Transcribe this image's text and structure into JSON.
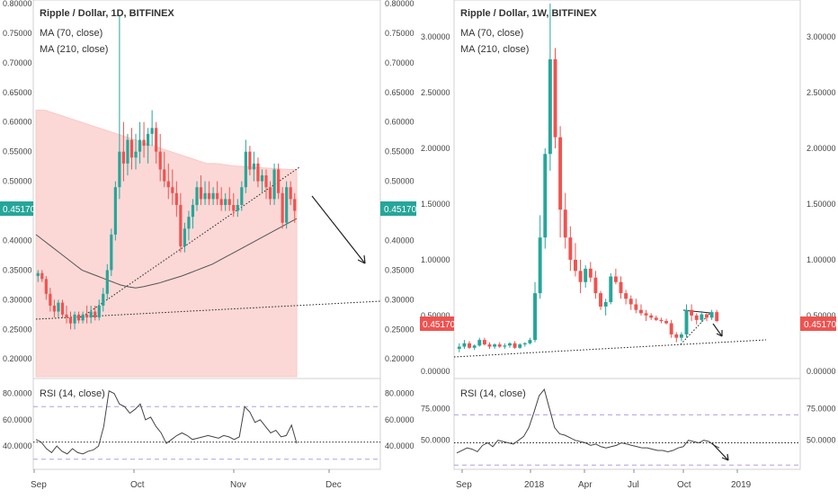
{
  "colors": {
    "up": "#26a69a",
    "down": "#ef5350",
    "ma_fill": "#f7b8b4",
    "ma70": "#f8c9c3",
    "ma210": "#555555",
    "rsi": "#444444",
    "price_badge_left": "#26a69a",
    "price_badge_right": "#ef5350",
    "grid_dash": "#b39ddb",
    "text": "#333333",
    "axis_text": "#444444"
  },
  "chart_data": [
    {
      "type": "candlestick",
      "title": "Ripple / Dollar, 1D, BITFINEX",
      "indicators": [
        "MA (70, close)",
        "MA (210, close)"
      ],
      "y_ticks": [
        "0.80000",
        "0.75000",
        "0.70000",
        "0.65000",
        "0.60000",
        "0.55000",
        "0.50000",
        "0.45000",
        "0.40000",
        "0.35000",
        "0.30000",
        "0.25000",
        "0.20000"
      ],
      "ylim": [
        0.17,
        0.8
      ],
      "x_labels": [
        "Sep",
        "Oct",
        "Nov",
        "Dec"
      ],
      "last_price": "0.45170",
      "ohlc": [
        [
          0.34,
          0.35,
          0.33,
          0.345
        ],
        [
          0.345,
          0.35,
          0.33,
          0.335
        ],
        [
          0.335,
          0.34,
          0.3,
          0.31
        ],
        [
          0.31,
          0.32,
          0.28,
          0.29
        ],
        [
          0.29,
          0.3,
          0.27,
          0.28
        ],
        [
          0.28,
          0.3,
          0.27,
          0.295
        ],
        [
          0.295,
          0.3,
          0.27,
          0.275
        ],
        [
          0.275,
          0.29,
          0.26,
          0.27
        ],
        [
          0.27,
          0.28,
          0.25,
          0.26
        ],
        [
          0.26,
          0.28,
          0.25,
          0.275
        ],
        [
          0.275,
          0.28,
          0.26,
          0.265
        ],
        [
          0.265,
          0.28,
          0.26,
          0.275
        ],
        [
          0.275,
          0.29,
          0.26,
          0.27
        ],
        [
          0.27,
          0.29,
          0.26,
          0.28
        ],
        [
          0.28,
          0.29,
          0.265,
          0.27
        ],
        [
          0.27,
          0.3,
          0.265,
          0.29
        ],
        [
          0.29,
          0.32,
          0.28,
          0.31
        ],
        [
          0.31,
          0.36,
          0.3,
          0.35
        ],
        [
          0.35,
          0.42,
          0.34,
          0.41
        ],
        [
          0.41,
          0.5,
          0.4,
          0.49
        ],
        [
          0.49,
          0.78,
          0.47,
          0.55
        ],
        [
          0.55,
          0.6,
          0.5,
          0.53
        ],
        [
          0.53,
          0.58,
          0.51,
          0.57
        ],
        [
          0.57,
          0.59,
          0.52,
          0.54
        ],
        [
          0.54,
          0.58,
          0.52,
          0.55
        ],
        [
          0.55,
          0.6,
          0.53,
          0.57
        ],
        [
          0.57,
          0.6,
          0.54,
          0.56
        ],
        [
          0.56,
          0.59,
          0.53,
          0.58
        ],
        [
          0.58,
          0.62,
          0.56,
          0.59
        ],
        [
          0.59,
          0.6,
          0.53,
          0.55
        ],
        [
          0.55,
          0.58,
          0.5,
          0.52
        ],
        [
          0.52,
          0.55,
          0.49,
          0.5
        ],
        [
          0.5,
          0.53,
          0.47,
          0.49
        ],
        [
          0.49,
          0.52,
          0.46,
          0.48
        ],
        [
          0.48,
          0.5,
          0.44,
          0.46
        ],
        [
          0.46,
          0.48,
          0.38,
          0.39
        ],
        [
          0.39,
          0.43,
          0.38,
          0.42
        ],
        [
          0.42,
          0.45,
          0.4,
          0.44
        ],
        [
          0.44,
          0.47,
          0.42,
          0.46
        ],
        [
          0.46,
          0.5,
          0.45,
          0.49
        ],
        [
          0.49,
          0.51,
          0.46,
          0.47
        ],
        [
          0.47,
          0.5,
          0.46,
          0.48
        ],
        [
          0.48,
          0.5,
          0.46,
          0.47
        ],
        [
          0.47,
          0.49,
          0.46,
          0.48
        ],
        [
          0.48,
          0.5,
          0.46,
          0.47
        ],
        [
          0.47,
          0.49,
          0.45,
          0.46
        ],
        [
          0.46,
          0.48,
          0.45,
          0.47
        ],
        [
          0.47,
          0.49,
          0.45,
          0.46
        ],
        [
          0.46,
          0.48,
          0.44,
          0.45
        ],
        [
          0.45,
          0.47,
          0.44,
          0.46
        ],
        [
          0.46,
          0.5,
          0.45,
          0.49
        ],
        [
          0.49,
          0.57,
          0.48,
          0.55
        ],
        [
          0.55,
          0.56,
          0.51,
          0.52
        ],
        [
          0.52,
          0.55,
          0.5,
          0.53
        ],
        [
          0.53,
          0.54,
          0.49,
          0.5
        ],
        [
          0.5,
          0.52,
          0.48,
          0.51
        ],
        [
          0.51,
          0.52,
          0.47,
          0.49
        ],
        [
          0.49,
          0.5,
          0.46,
          0.47
        ],
        [
          0.47,
          0.53,
          0.46,
          0.52
        ],
        [
          0.52,
          0.53,
          0.47,
          0.48
        ],
        [
          0.48,
          0.49,
          0.42,
          0.43
        ],
        [
          0.43,
          0.5,
          0.42,
          0.49
        ],
        [
          0.49,
          0.5,
          0.46,
          0.47
        ],
        [
          0.47,
          0.48,
          0.43,
          0.45
        ]
      ],
      "ma70": [
        0.62,
        0.62,
        0.615,
        0.61,
        0.605,
        0.6,
        0.595,
        0.59,
        0.585,
        0.58,
        0.575,
        0.57,
        0.565,
        0.56,
        0.555,
        0.55,
        0.545,
        0.54,
        0.535,
        0.53,
        0.53,
        0.528,
        0.526,
        0.525,
        0.524,
        0.523,
        0.522,
        0.521,
        0.52,
        0.52
      ],
      "ma210": [
        0.41,
        0.4,
        0.39,
        0.38,
        0.37,
        0.36,
        0.35,
        0.345,
        0.34,
        0.335,
        0.33,
        0.325,
        0.322,
        0.32,
        0.322,
        0.325,
        0.328,
        0.332,
        0.336,
        0.34,
        0.345,
        0.35,
        0.355,
        0.36,
        0.367,
        0.374,
        0.381,
        0.388,
        0.395,
        0.402,
        0.409,
        0.416,
        0.423,
        0.43,
        0.437
      ],
      "rsi_label": "RSI (14, close)",
      "rsi_ticks": [
        "80.0000",
        "60.0000",
        "40.0000"
      ],
      "rsi": [
        45,
        43,
        38,
        35,
        40,
        36,
        34,
        38,
        35,
        34,
        36,
        37,
        40,
        55,
        82,
        80,
        72,
        70,
        65,
        68,
        72,
        60,
        62,
        55,
        50,
        42,
        45,
        48,
        50,
        48,
        45,
        46,
        47,
        48,
        47,
        46,
        48,
        47,
        45,
        47,
        70,
        66,
        58,
        60,
        55,
        50,
        52,
        47,
        48,
        56,
        42
      ]
    },
    {
      "type": "candlestick",
      "title": "Ripple / Dollar, 1W, BITFINEX",
      "indicators": [
        "MA (70, close)",
        "MA (210, close)"
      ],
      "y_ticks": [
        "3.00000",
        "2.50000",
        "2.00000",
        "1.50000",
        "1.00000",
        "0.50000",
        "0.00000"
      ],
      "ylim": [
        -0.05,
        3.3
      ],
      "x_labels": [
        "Sep",
        "2018",
        "Apr",
        "Jul",
        "Oct",
        "2019"
      ],
      "last_price": "0.45170",
      "ohlc": [
        [
          0.2,
          0.25,
          0.17,
          0.22
        ],
        [
          0.22,
          0.28,
          0.2,
          0.25
        ],
        [
          0.25,
          0.27,
          0.2,
          0.21
        ],
        [
          0.21,
          0.24,
          0.19,
          0.23
        ],
        [
          0.23,
          0.3,
          0.22,
          0.28
        ],
        [
          0.28,
          0.3,
          0.23,
          0.24
        ],
        [
          0.24,
          0.26,
          0.2,
          0.22
        ],
        [
          0.22,
          0.25,
          0.2,
          0.24
        ],
        [
          0.24,
          0.26,
          0.21,
          0.22
        ],
        [
          0.22,
          0.25,
          0.2,
          0.23
        ],
        [
          0.23,
          0.26,
          0.21,
          0.25
        ],
        [
          0.25,
          0.27,
          0.2,
          0.21
        ],
        [
          0.21,
          0.25,
          0.2,
          0.24
        ],
        [
          0.24,
          0.26,
          0.22,
          0.25
        ],
        [
          0.25,
          0.3,
          0.24,
          0.28
        ],
        [
          0.28,
          0.8,
          0.26,
          0.7
        ],
        [
          0.7,
          1.4,
          0.65,
          1.2
        ],
        [
          1.2,
          2.0,
          1.1,
          1.95
        ],
        [
          1.95,
          3.3,
          1.8,
          2.8
        ],
        [
          2.8,
          2.9,
          2.0,
          2.1
        ],
        [
          2.1,
          2.2,
          1.2,
          1.45
        ],
        [
          1.45,
          1.6,
          1.1,
          1.2
        ],
        [
          1.2,
          1.3,
          0.9,
          1.0
        ],
        [
          1.0,
          1.15,
          0.85,
          0.9
        ],
        [
          0.9,
          1.0,
          0.7,
          0.8
        ],
        [
          0.8,
          0.95,
          0.75,
          0.92
        ],
        [
          0.92,
          0.98,
          0.8,
          0.84
        ],
        [
          0.84,
          0.9,
          0.65,
          0.7
        ],
        [
          0.7,
          0.72,
          0.55,
          0.58
        ],
        [
          0.58,
          0.65,
          0.5,
          0.62
        ],
        [
          0.62,
          0.88,
          0.6,
          0.85
        ],
        [
          0.85,
          0.92,
          0.78,
          0.8
        ],
        [
          0.8,
          0.85,
          0.65,
          0.7
        ],
        [
          0.7,
          0.73,
          0.6,
          0.65
        ],
        [
          0.65,
          0.68,
          0.55,
          0.6
        ],
        [
          0.6,
          0.65,
          0.52,
          0.55
        ],
        [
          0.55,
          0.6,
          0.5,
          0.52
        ],
        [
          0.52,
          0.55,
          0.45,
          0.5
        ],
        [
          0.5,
          0.52,
          0.46,
          0.48
        ],
        [
          0.48,
          0.5,
          0.45,
          0.46
        ],
        [
          0.46,
          0.48,
          0.43,
          0.45
        ],
        [
          0.45,
          0.47,
          0.42,
          0.43
        ],
        [
          0.43,
          0.46,
          0.3,
          0.33
        ],
        [
          0.33,
          0.35,
          0.26,
          0.3
        ],
        [
          0.3,
          0.35,
          0.27,
          0.33
        ],
        [
          0.33,
          0.6,
          0.3,
          0.55
        ],
        [
          0.55,
          0.6,
          0.45,
          0.5
        ],
        [
          0.5,
          0.52,
          0.42,
          0.46
        ],
        [
          0.46,
          0.54,
          0.44,
          0.51
        ],
        [
          0.51,
          0.52,
          0.45,
          0.48
        ],
        [
          0.48,
          0.55,
          0.46,
          0.53
        ],
        [
          0.53,
          0.55,
          0.44,
          0.45
        ]
      ],
      "rsi_label": "RSI (14, close)",
      "rsi_ticks": [
        "75.0000",
        "50.0000"
      ],
      "rsi": [
        40,
        42,
        44,
        43,
        41,
        46,
        48,
        45,
        50,
        49,
        48,
        47,
        50,
        53,
        60,
        72,
        85,
        90,
        75,
        60,
        55,
        54,
        52,
        50,
        49,
        48,
        46,
        47,
        45,
        44,
        45,
        46,
        48,
        47,
        46,
        45,
        44,
        44,
        43,
        42,
        42,
        41,
        42,
        44,
        45,
        50,
        49,
        48,
        50,
        49,
        46,
        44
      ]
    }
  ]
}
